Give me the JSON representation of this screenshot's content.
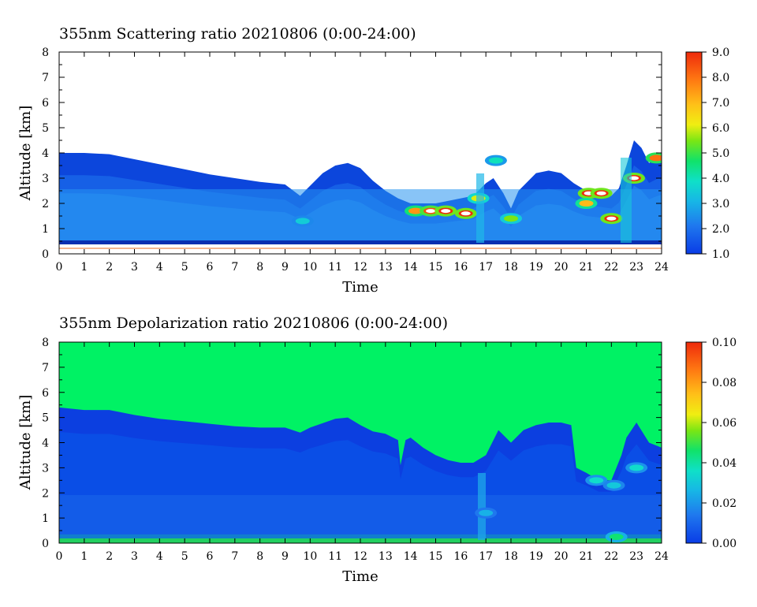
{
  "chart_data": [
    {
      "type": "heatmap",
      "title": "355nm Scattering ratio  20210806 (0:00-24:00)",
      "xlabel": "Time",
      "ylabel": "Altitude [km]",
      "xlim": [
        0,
        24
      ],
      "ylim": [
        0,
        8
      ],
      "xticks": [
        "0",
        "1",
        "2",
        "3",
        "4",
        "5",
        "6",
        "7",
        "8",
        "9",
        "10",
        "11",
        "12",
        "13",
        "14",
        "15",
        "16",
        "17",
        "18",
        "19",
        "20",
        "21",
        "22",
        "23",
        "24"
      ],
      "yticks": [
        "0",
        "1",
        "2",
        "3",
        "4",
        "5",
        "6",
        "7",
        "8"
      ],
      "colorbar": {
        "min": 1.0,
        "max": 9.0,
        "ticks": [
          "1.0",
          "2.0",
          "3.0",
          "4.0",
          "5.0",
          "6.0",
          "7.0",
          "8.0",
          "9.0"
        ]
      },
      "background_color": "#ffffff",
      "layer_top_km": [
        [
          0,
          4.0
        ],
        [
          1,
          4.0
        ],
        [
          2,
          3.95
        ],
        [
          3,
          3.75
        ],
        [
          4,
          3.55
        ],
        [
          5,
          3.35
        ],
        [
          6,
          3.15
        ],
        [
          7,
          3.0
        ],
        [
          8,
          2.85
        ],
        [
          9,
          2.75
        ],
        [
          9.6,
          2.3
        ],
        [
          10,
          2.7
        ],
        [
          10.5,
          3.2
        ],
        [
          11,
          3.5
        ],
        [
          11.5,
          3.6
        ],
        [
          12,
          3.4
        ],
        [
          12.5,
          2.9
        ],
        [
          13,
          2.5
        ],
        [
          13.5,
          2.2
        ],
        [
          14,
          2.0
        ],
        [
          15,
          2.0
        ],
        [
          16,
          2.2
        ],
        [
          16.5,
          2.3
        ],
        [
          17,
          2.8
        ],
        [
          17.3,
          3.0
        ],
        [
          17.7,
          2.4
        ],
        [
          18,
          1.8
        ],
        [
          18.3,
          2.5
        ],
        [
          19,
          3.2
        ],
        [
          19.5,
          3.3
        ],
        [
          20,
          3.2
        ],
        [
          20.5,
          2.8
        ],
        [
          21,
          2.5
        ],
        [
          21.5,
          2.4
        ],
        [
          22,
          2.3
        ],
        [
          22.3,
          2.6
        ],
        [
          22.6,
          3.5
        ],
        [
          22.9,
          4.5
        ],
        [
          23.2,
          4.2
        ],
        [
          23.5,
          3.6
        ],
        [
          23.8,
          3.8
        ],
        [
          24,
          3.9
        ]
      ],
      "features": [
        {
          "time": 9.7,
          "altitude_km": 1.3,
          "value": 3.5
        },
        {
          "time": 14.2,
          "altitude_km": 1.7,
          "value": 7.5
        },
        {
          "time": 14.8,
          "altitude_km": 1.7,
          "value": 8.5
        },
        {
          "time": 15.4,
          "altitude_km": 1.7,
          "value": 9.0
        },
        {
          "time": 16.2,
          "altitude_km": 1.6,
          "value": 9.0
        },
        {
          "time": 16.7,
          "altitude_km": 2.2,
          "value": 6.0
        },
        {
          "time": 17.4,
          "altitude_km": 3.7,
          "value": 4.0
        },
        {
          "time": 18.0,
          "altitude_km": 1.4,
          "value": 5.5
        },
        {
          "time": 21.1,
          "altitude_km": 2.4,
          "value": 9.0
        },
        {
          "time": 21.6,
          "altitude_km": 2.4,
          "value": 9.0
        },
        {
          "time": 21.0,
          "altitude_km": 2.0,
          "value": 7.0
        },
        {
          "time": 22.0,
          "altitude_km": 1.4,
          "value": 9.0
        },
        {
          "time": 22.9,
          "altitude_km": 3.0,
          "value": 9.0
        },
        {
          "time": 23.8,
          "altitude_km": 3.8,
          "value": 8.0
        }
      ]
    },
    {
      "type": "heatmap",
      "title": "355nm Depolarization ratio  20210806 (0:00-24:00)",
      "xlabel": "Time",
      "ylabel": "Altitude [km]",
      "xlim": [
        0,
        24
      ],
      "ylim": [
        0,
        8
      ],
      "xticks": [
        "0",
        "1",
        "2",
        "3",
        "4",
        "5",
        "6",
        "7",
        "8",
        "9",
        "10",
        "11",
        "12",
        "13",
        "14",
        "15",
        "16",
        "17",
        "18",
        "19",
        "20",
        "21",
        "22",
        "23",
        "24"
      ],
      "yticks": [
        "0",
        "1",
        "2",
        "3",
        "4",
        "5",
        "6",
        "7",
        "8"
      ],
      "colorbar": {
        "min": 0.0,
        "max": 0.1,
        "ticks": [
          "0.00",
          "0.02",
          "0.04",
          "0.06",
          "0.08",
          "0.10"
        ]
      },
      "background_color": "#00f264",
      "layer_top_km": [
        [
          0,
          5.4
        ],
        [
          1,
          5.3
        ],
        [
          2,
          5.3
        ],
        [
          3,
          5.1
        ],
        [
          4,
          4.95
        ],
        [
          5,
          4.85
        ],
        [
          6,
          4.75
        ],
        [
          7,
          4.65
        ],
        [
          8,
          4.6
        ],
        [
          9,
          4.6
        ],
        [
          9.6,
          4.4
        ],
        [
          10,
          4.6
        ],
        [
          11,
          4.95
        ],
        [
          11.5,
          5.0
        ],
        [
          12,
          4.7
        ],
        [
          12.5,
          4.45
        ],
        [
          13,
          4.35
        ],
        [
          13.5,
          4.1
        ],
        [
          13.6,
          3.1
        ],
        [
          13.8,
          4.1
        ],
        [
          14,
          4.2
        ],
        [
          14.5,
          3.8
        ],
        [
          15,
          3.5
        ],
        [
          15.5,
          3.3
        ],
        [
          16,
          3.2
        ],
        [
          16.5,
          3.2
        ],
        [
          17,
          3.5
        ],
        [
          17.5,
          4.5
        ],
        [
          18,
          4.0
        ],
        [
          18.5,
          4.5
        ],
        [
          19,
          4.7
        ],
        [
          19.5,
          4.8
        ],
        [
          20,
          4.8
        ],
        [
          20.4,
          4.7
        ],
        [
          20.6,
          3.0
        ],
        [
          21,
          2.8
        ],
        [
          21.5,
          2.5
        ],
        [
          22,
          2.5
        ],
        [
          22.4,
          3.5
        ],
        [
          22.6,
          4.2
        ],
        [
          23,
          4.8
        ],
        [
          23.5,
          4.0
        ],
        [
          24,
          3.8
        ]
      ],
      "features": [
        {
          "time": 21.4,
          "altitude_km": 2.5,
          "value": 0.035
        },
        {
          "time": 22.1,
          "altitude_km": 2.3,
          "value": 0.03
        },
        {
          "time": 23.0,
          "altitude_km": 3.0,
          "value": 0.035
        },
        {
          "time": 22.2,
          "altitude_km": 0.25,
          "value": 0.045
        },
        {
          "time": 17.0,
          "altitude_km": 1.2,
          "value": 0.025
        }
      ]
    }
  ]
}
